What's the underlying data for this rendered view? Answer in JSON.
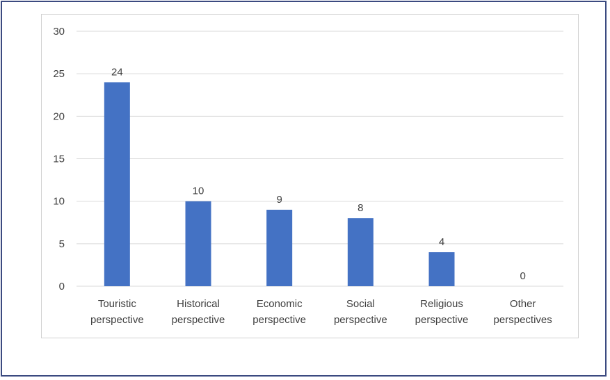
{
  "chart_data": {
    "type": "bar",
    "categories": [
      "Touristic perspective",
      "Historical perspective",
      "Economic perspective",
      "Social perspective",
      "Religious perspective",
      "Other perspectives"
    ],
    "category_lines": [
      [
        "Touristic",
        "perspective"
      ],
      [
        "Historical",
        "perspective"
      ],
      [
        "Economic",
        "perspective"
      ],
      [
        "Social",
        "perspective"
      ],
      [
        "Religious",
        "perspective"
      ],
      [
        "Other",
        "perspectives"
      ]
    ],
    "values": [
      24,
      10,
      9,
      8,
      4,
      0
    ],
    "ylim": [
      0,
      30
    ],
    "yticks": [
      0,
      5,
      10,
      15,
      20,
      25,
      30
    ],
    "grid": true,
    "legend": "none",
    "bar_color": "#4472c4",
    "grid_color": "#d9d9d9",
    "title": "",
    "xlabel": "",
    "ylabel": ""
  }
}
